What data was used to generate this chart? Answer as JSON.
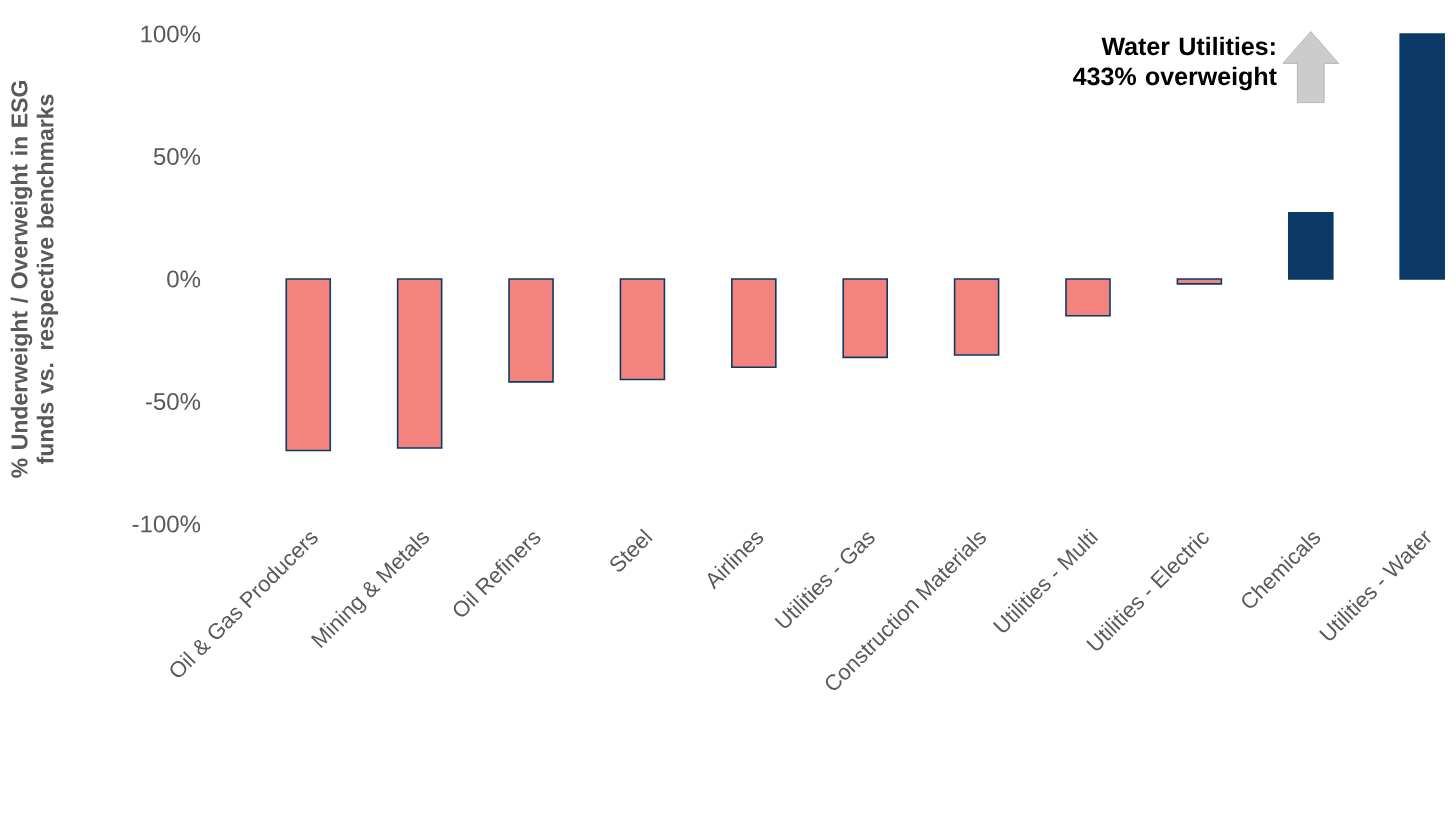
{
  "chart_data": {
    "type": "bar",
    "ylabel": "% Underweight / Overweight in ESG funds vs. respective benchmarks",
    "categories": [
      "Oil & Gas Producers",
      "Mining & Metals",
      "Oil Refiners",
      "Steel",
      "Airlines",
      "Utilities - Gas",
      "Construction Materials",
      "Utilities - Multi",
      "Utilities - Electric",
      "Chemicals",
      "Utilities - Water"
    ],
    "values": [
      -70,
      -69,
      -42,
      -41,
      -36,
      -32,
      -31,
      -15,
      -2,
      27,
      100
    ],
    "colors": [
      "#f4837d",
      "#f4837d",
      "#f4837d",
      "#f4837d",
      "#f4837d",
      "#f4837d",
      "#f4837d",
      "#f4837d",
      "#f4837d",
      "#0b3a66",
      "#0b3a66"
    ],
    "ylim": [
      -100,
      100
    ],
    "yticks": [
      {
        "value": -100,
        "label": "-100%"
      },
      {
        "value": -50,
        "label": "-50%"
      },
      {
        "value": 0,
        "label": "0%"
      },
      {
        "value": 50,
        "label": "50%"
      },
      {
        "value": 100,
        "label": "100%"
      }
    ],
    "annotations": [
      "Water Utilities: 433% overweight"
    ],
    "grid": false
  }
}
